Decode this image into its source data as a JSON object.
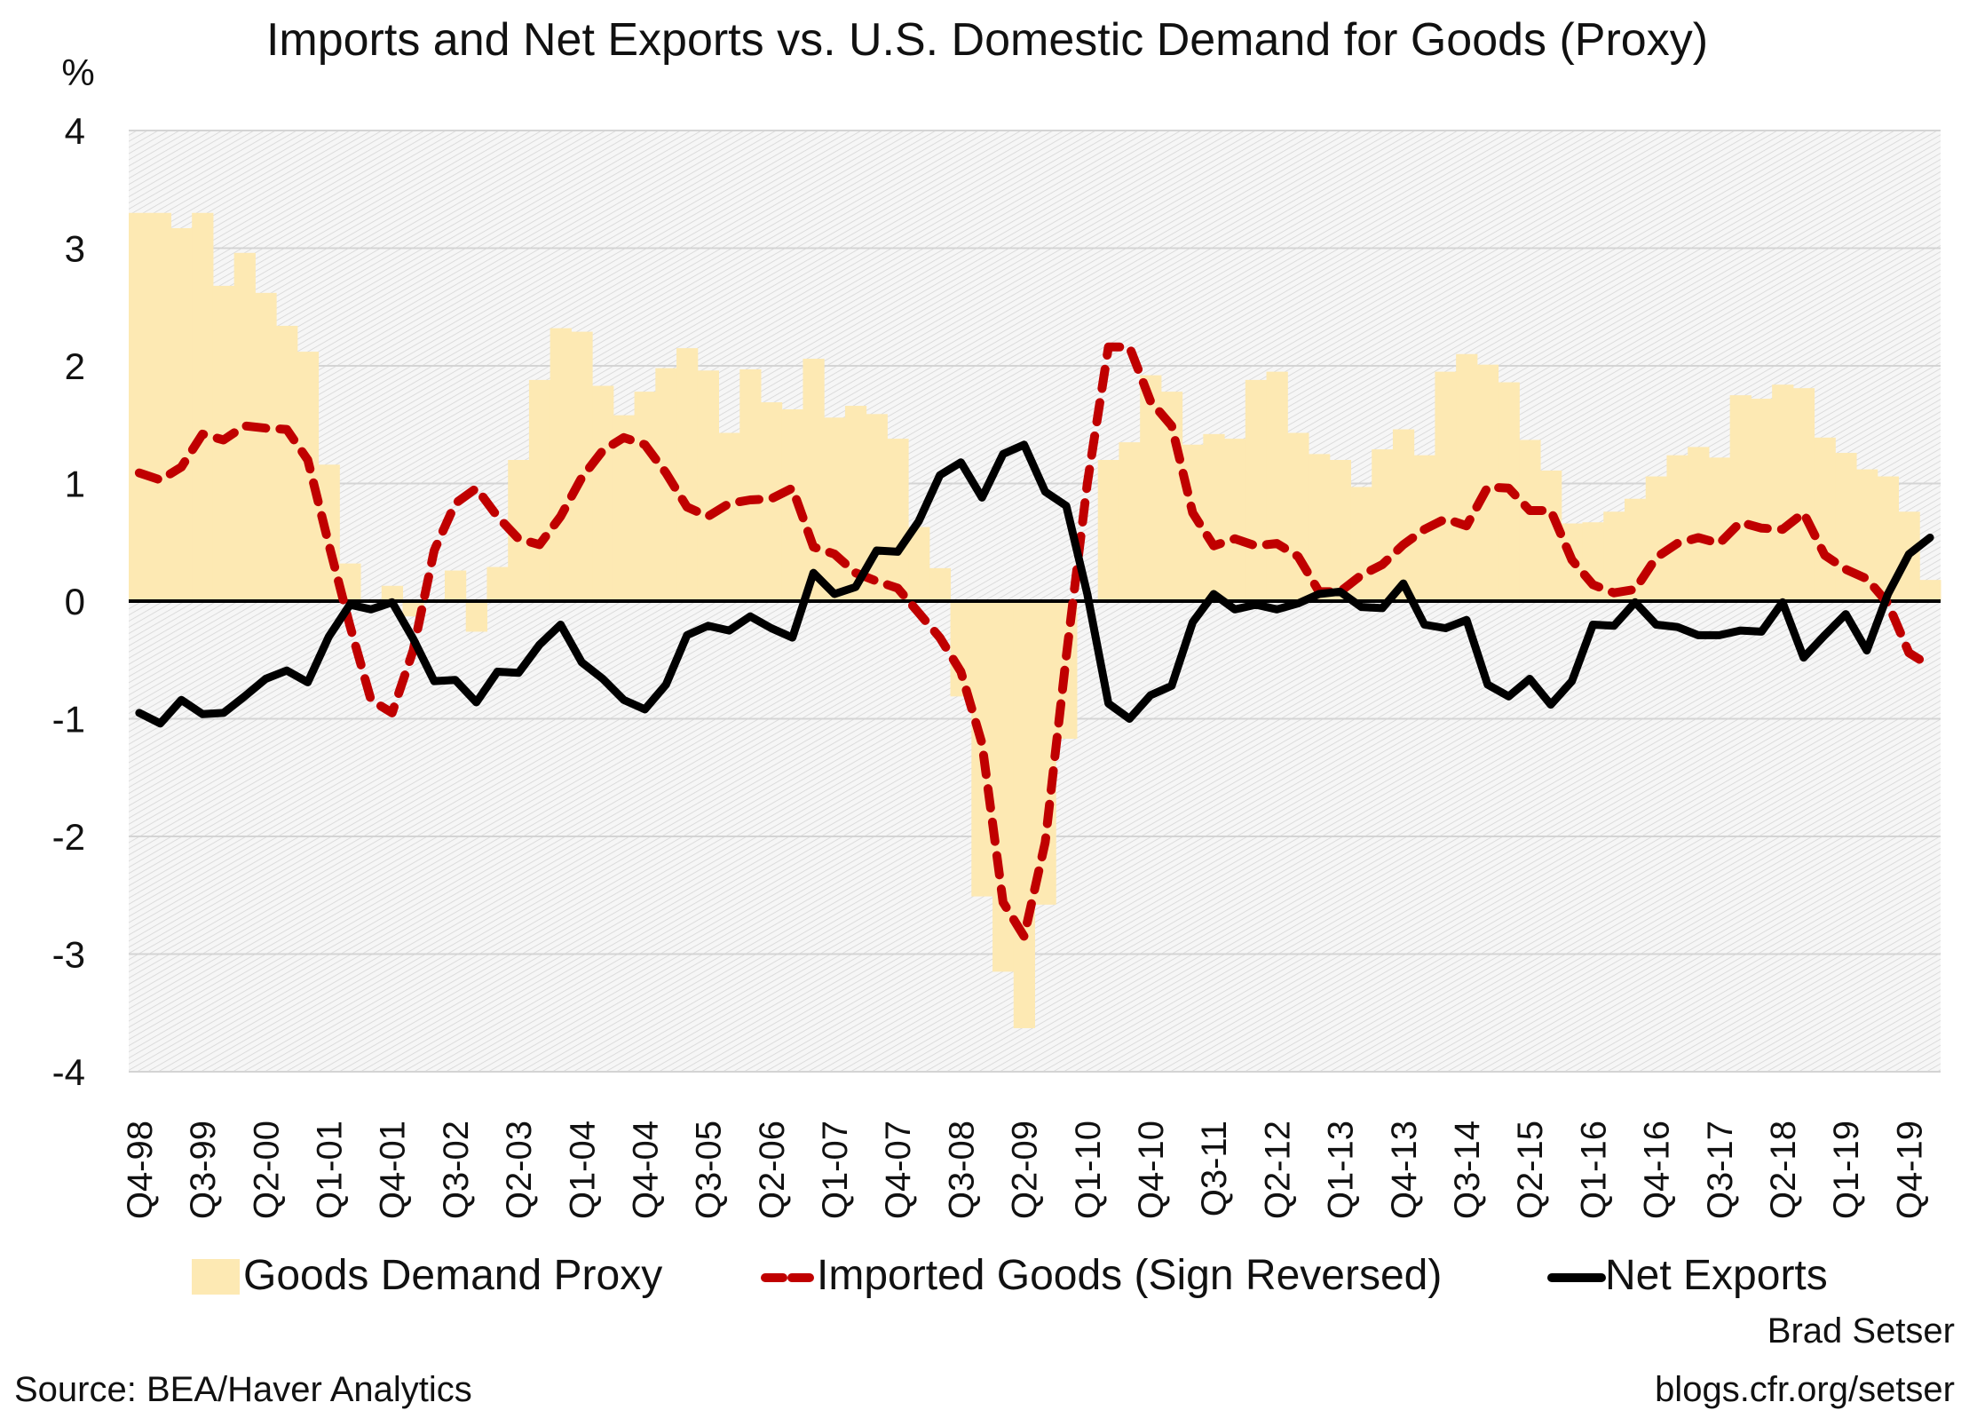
{
  "chart_data": {
    "type": "bar+line",
    "title": "Imports and Net Exports vs. U.S. Domestic Demand for Goods (Proxy)",
    "ylabel": "%",
    "ylim": [
      -4,
      4
    ],
    "y_ticks": [
      "4",
      "3",
      "2",
      "1",
      "0",
      "-1",
      "-2",
      "-3",
      "-4"
    ],
    "y_tick_values": [
      4,
      3,
      2,
      1,
      0,
      -1,
      -2,
      -3,
      -4
    ],
    "grid": true,
    "legend_position": "bottom",
    "categories": [
      "Q4-98",
      "Q1-99",
      "Q2-99",
      "Q3-99",
      "Q4-99",
      "Q1-00",
      "Q2-00",
      "Q3-00",
      "Q4-00",
      "Q1-01",
      "Q2-01",
      "Q3-01",
      "Q4-01",
      "Q1-02",
      "Q2-02",
      "Q3-02",
      "Q4-02",
      "Q1-03",
      "Q2-03",
      "Q3-03",
      "Q4-03",
      "Q1-04",
      "Q2-04",
      "Q3-04",
      "Q4-04",
      "Q1-05",
      "Q2-05",
      "Q3-05",
      "Q4-05",
      "Q1-06",
      "Q2-06",
      "Q3-06",
      "Q4-06",
      "Q1-07",
      "Q2-07",
      "Q3-07",
      "Q4-07",
      "Q1-08",
      "Q2-08",
      "Q3-08",
      "Q4-08",
      "Q1-09",
      "Q2-09",
      "Q3-09",
      "Q4-09",
      "Q1-10",
      "Q2-10",
      "Q3-10",
      "Q4-10",
      "Q1-11",
      "Q2-11",
      "Q3-11",
      "Q4-11",
      "Q1-12",
      "Q2-12",
      "Q3-12",
      "Q4-12",
      "Q1-13",
      "Q2-13",
      "Q3-13",
      "Q4-13",
      "Q1-14",
      "Q2-14",
      "Q3-14",
      "Q4-14",
      "Q1-15",
      "Q2-15",
      "Q3-15",
      "Q4-15",
      "Q1-16",
      "Q2-16",
      "Q3-16",
      "Q4-16",
      "Q1-17",
      "Q2-17",
      "Q3-17",
      "Q4-17",
      "Q1-18",
      "Q2-18",
      "Q3-18",
      "Q4-18",
      "Q1-19",
      "Q2-19",
      "Q3-19",
      "Q4-19",
      "Q1-20"
    ],
    "x_tick_labels": [
      "Q4-98",
      "Q3-99",
      "Q2-00",
      "Q1-01",
      "Q4-01",
      "Q3-02",
      "Q2-03",
      "Q1-04",
      "Q4-04",
      "Q3-05",
      "Q2-06",
      "Q1-07",
      "Q4-07",
      "Q3-08",
      "Q2-09",
      "Q1-10",
      "Q4-10",
      "Q3-11",
      "Q2-12",
      "Q1-13",
      "Q4-13",
      "Q3-14",
      "Q2-15",
      "Q1-16",
      "Q4-16",
      "Q3-17",
      "Q2-18",
      "Q1-19",
      "Q4-19"
    ],
    "series": [
      {
        "name": "Goods Demand Proxy",
        "type": "bar",
        "color": "#FDE9B3",
        "values": [
          3.3,
          3.3,
          3.17,
          3.3,
          2.68,
          2.96,
          2.62,
          2.34,
          2.12,
          1.16,
          0.32,
          0.0,
          0.13,
          -0.13,
          0.0,
          0.26,
          -0.26,
          0.29,
          1.2,
          1.88,
          2.32,
          2.29,
          1.83,
          1.58,
          1.78,
          1.98,
          2.15,
          1.96,
          1.43,
          1.97,
          1.69,
          1.63,
          2.06,
          1.56,
          1.66,
          1.59,
          1.38,
          0.63,
          0.28,
          -0.81,
          -2.51,
          -3.15,
          -3.63,
          -2.58,
          -1.17,
          0.0,
          1.2,
          1.35,
          1.92,
          1.78,
          1.33,
          1.42,
          1.38,
          1.88,
          1.95,
          1.43,
          1.25,
          1.2,
          0.97,
          1.29,
          1.46,
          1.24,
          1.95,
          2.1,
          2.01,
          1.86,
          1.37,
          1.11,
          0.66,
          0.67,
          0.76,
          0.87,
          1.06,
          1.24,
          1.31,
          1.22,
          1.75,
          1.72,
          1.84,
          1.81,
          1.39,
          1.26,
          1.12,
          1.06,
          0.76,
          0.18
        ]
      },
      {
        "name": "Imported Goods (Sign Reversed)",
        "type": "line",
        "style": "dashed",
        "color": "#C00000",
        "values": [
          1.09,
          1.03,
          1.14,
          1.42,
          1.37,
          1.49,
          1.47,
          1.46,
          1.2,
          0.48,
          -0.21,
          -0.84,
          -0.95,
          -0.42,
          0.43,
          0.83,
          0.96,
          0.72,
          0.53,
          0.48,
          0.72,
          1.05,
          1.28,
          1.39,
          1.33,
          1.09,
          0.8,
          0.72,
          0.83,
          0.86,
          0.87,
          0.96,
          0.46,
          0.4,
          0.24,
          0.17,
          0.11,
          -0.1,
          -0.31,
          -0.6,
          -1.21,
          -2.56,
          -2.85,
          -2.05,
          -0.47,
          1.0,
          2.16,
          2.16,
          1.7,
          1.49,
          0.75,
          0.47,
          0.53,
          0.47,
          0.49,
          0.38,
          0.08,
          0.08,
          0.22,
          0.31,
          0.48,
          0.61,
          0.7,
          0.64,
          0.97,
          0.96,
          0.77,
          0.77,
          0.35,
          0.14,
          0.07,
          0.1,
          0.37,
          0.49,
          0.54,
          0.49,
          0.67,
          0.62,
          0.61,
          0.75,
          0.39,
          0.27,
          0.19,
          -0.02,
          -0.44,
          -0.55
        ]
      },
      {
        "name": "Net Exports",
        "type": "line",
        "style": "solid",
        "color": "#000000",
        "values": [
          -0.95,
          -1.04,
          -0.84,
          -0.96,
          -0.95,
          -0.81,
          -0.66,
          -0.59,
          -0.69,
          -0.3,
          -0.03,
          -0.07,
          -0.01,
          -0.32,
          -0.68,
          -0.67,
          -0.86,
          -0.6,
          -0.61,
          -0.37,
          -0.2,
          -0.52,
          -0.66,
          -0.84,
          -0.92,
          -0.71,
          -0.29,
          -0.21,
          -0.25,
          -0.13,
          -0.23,
          -0.31,
          0.24,
          0.06,
          0.12,
          0.43,
          0.42,
          0.68,
          1.07,
          1.18,
          0.88,
          1.25,
          1.33,
          0.93,
          0.81,
          0.06,
          -0.87,
          -1.0,
          -0.8,
          -0.72,
          -0.18,
          0.06,
          -0.07,
          -0.03,
          -0.07,
          -0.02,
          0.06,
          0.08,
          -0.05,
          -0.06,
          0.15,
          -0.2,
          -0.23,
          -0.16,
          -0.71,
          -0.81,
          -0.66,
          -0.88,
          -0.68,
          -0.2,
          -0.21,
          -0.01,
          -0.2,
          -0.22,
          -0.29,
          -0.29,
          -0.25,
          -0.26,
          -0.01,
          -0.48,
          -0.29,
          -0.11,
          -0.42,
          0.06,
          0.4,
          0.54
        ]
      }
    ]
  },
  "footer": {
    "source": "Source: BEA/Haver Analytics",
    "author": "Brad Setser",
    "url": "blogs.cfr.org/setser"
  }
}
